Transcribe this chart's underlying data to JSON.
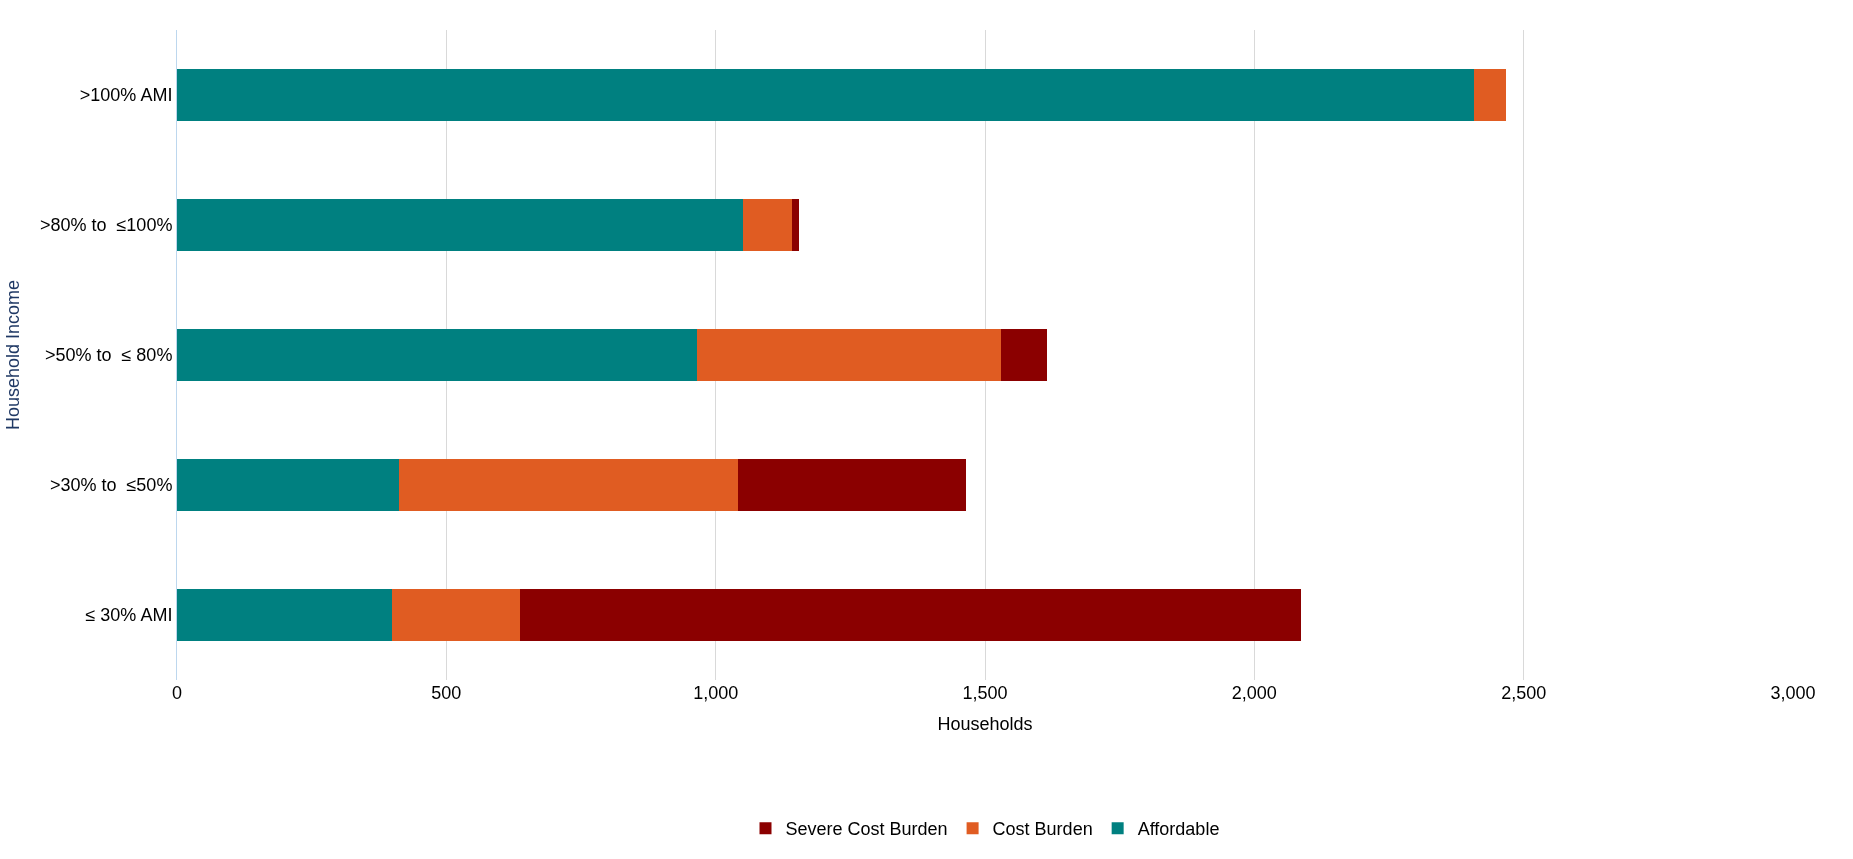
{
  "chart_data": {
    "type": "bar",
    "orientation": "horizontal",
    "stacked": true,
    "xlabel": "Households",
    "ylabel": "Household Income",
    "categories": [
      ">100% AMI",
      ">80% to  ≤100%",
      ">50% to  ≤ 80%",
      ">30% to  ≤50%",
      "≤ 30% AMI"
    ],
    "series": [
      {
        "name": "Affordable",
        "color": "#008080",
        "values": [
          2407,
          1051,
          965,
          412,
          400
        ]
      },
      {
        "name": "Cost Burden",
        "color": "#e05c22",
        "values": [
          61,
          90,
          565,
          630,
          237
        ]
      },
      {
        "name": "Severe Cost Burden",
        "color": "#8b0000",
        "values": [
          0,
          14,
          86,
          423,
          1449
        ]
      }
    ],
    "xlim": [
      0,
      3000
    ],
    "xticks": [
      {
        "value": 0,
        "label": "0"
      },
      {
        "value": 500,
        "label": "500"
      },
      {
        "value": 1000,
        "label": "1,000"
      },
      {
        "value": 1500,
        "label": "1,500"
      },
      {
        "value": 2000,
        "label": "2,000"
      },
      {
        "value": 2500,
        "label": "2,500"
      },
      {
        "value": 3000,
        "label": "3,000"
      }
    ],
    "grid": "x",
    "legend": "bottom"
  }
}
